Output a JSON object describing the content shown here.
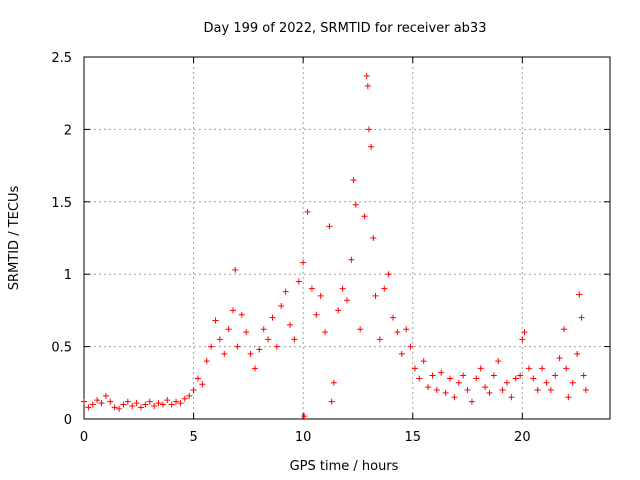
{
  "chart_data": {
    "type": "scatter",
    "title": "Day 199 of 2022, SRMTID for receiver ab33",
    "xlabel": "GPS time / hours",
    "ylabel": "SRMTID / TECUs",
    "xlim": [
      0,
      24
    ],
    "ylim": [
      0,
      2.5
    ],
    "xticks": [
      0,
      5,
      10,
      15,
      20
    ],
    "xtick_labels": [
      "0",
      "5",
      "10",
      "15",
      "20"
    ],
    "yticks": [
      0,
      0.5,
      1,
      1.5,
      2,
      2.5
    ],
    "ytick_labels": [
      "0",
      "0.5",
      "1",
      "1.5",
      "2",
      "2.5"
    ],
    "grid": true,
    "marker": "+",
    "series_color": "#ff0000",
    "series": [
      {
        "name": "SRMTID",
        "points": [
          [
            0.0,
            0.12
          ],
          [
            0.2,
            0.08
          ],
          [
            0.4,
            0.1
          ],
          [
            0.6,
            0.13
          ],
          [
            0.8,
            0.11
          ],
          [
            1.0,
            0.16
          ],
          [
            1.2,
            0.12
          ],
          [
            1.4,
            0.08
          ],
          [
            1.6,
            0.07
          ],
          [
            1.8,
            0.1
          ],
          [
            2.0,
            0.12
          ],
          [
            2.2,
            0.09
          ],
          [
            2.4,
            0.11
          ],
          [
            2.6,
            0.08
          ],
          [
            2.8,
            0.1
          ],
          [
            3.0,
            0.12
          ],
          [
            3.2,
            0.09
          ],
          [
            3.4,
            0.11
          ],
          [
            3.6,
            0.1
          ],
          [
            3.8,
            0.13
          ],
          [
            4.0,
            0.1
          ],
          [
            4.2,
            0.12
          ],
          [
            4.4,
            0.11
          ],
          [
            4.6,
            0.14
          ],
          [
            4.8,
            0.16
          ],
          [
            5.0,
            0.2
          ],
          [
            5.2,
            0.28
          ],
          [
            5.4,
            0.24
          ],
          [
            5.6,
            0.4
          ],
          [
            5.8,
            0.5
          ],
          [
            6.0,
            0.68
          ],
          [
            6.2,
            0.55
          ],
          [
            6.4,
            0.45
          ],
          [
            6.6,
            0.62
          ],
          [
            6.8,
            0.75
          ],
          [
            6.9,
            1.03
          ],
          [
            7.0,
            0.5
          ],
          [
            7.2,
            0.72
          ],
          [
            7.4,
            0.6
          ],
          [
            7.6,
            0.45
          ],
          [
            7.8,
            0.35
          ],
          [
            8.0,
            0.48
          ],
          [
            8.2,
            0.62
          ],
          [
            8.4,
            0.55
          ],
          [
            8.6,
            0.7
          ],
          [
            8.8,
            0.5
          ],
          [
            9.0,
            0.78
          ],
          [
            9.2,
            0.88
          ],
          [
            9.4,
            0.65
          ],
          [
            9.6,
            0.55
          ],
          [
            9.8,
            0.95
          ],
          [
            10.0,
            1.08
          ],
          [
            10.05,
            0.02
          ],
          [
            10.2,
            1.43
          ],
          [
            10.4,
            0.9
          ],
          [
            10.6,
            0.72
          ],
          [
            10.8,
            0.85
          ],
          [
            11.0,
            0.6
          ],
          [
            11.2,
            1.33
          ],
          [
            11.3,
            0.12
          ],
          [
            11.4,
            0.25
          ],
          [
            11.6,
            0.75
          ],
          [
            11.8,
            0.9
          ],
          [
            12.0,
            0.82
          ],
          [
            12.2,
            1.1
          ],
          [
            12.3,
            1.65
          ],
          [
            12.4,
            1.48
          ],
          [
            12.6,
            0.62
          ],
          [
            12.8,
            1.4
          ],
          [
            12.9,
            2.37
          ],
          [
            12.95,
            2.3
          ],
          [
            13.0,
            2.0
          ],
          [
            13.1,
            1.88
          ],
          [
            13.2,
            1.25
          ],
          [
            13.3,
            0.85
          ],
          [
            13.5,
            0.55
          ],
          [
            13.7,
            0.9
          ],
          [
            13.9,
            1.0
          ],
          [
            14.1,
            0.7
          ],
          [
            14.3,
            0.6
          ],
          [
            14.5,
            0.45
          ],
          [
            14.7,
            0.62
          ],
          [
            14.9,
            0.5
          ],
          [
            15.1,
            0.35
          ],
          [
            15.3,
            0.28
          ],
          [
            15.5,
            0.4
          ],
          [
            15.7,
            0.22
          ],
          [
            15.9,
            0.3
          ],
          [
            16.1,
            0.2
          ],
          [
            16.3,
            0.32
          ],
          [
            16.5,
            0.18
          ],
          [
            16.7,
            0.28
          ],
          [
            16.9,
            0.15
          ],
          [
            17.1,
            0.25
          ],
          [
            17.3,
            0.3
          ],
          [
            17.5,
            0.2
          ],
          [
            17.7,
            0.12
          ],
          [
            17.9,
            0.28
          ],
          [
            18.1,
            0.35
          ],
          [
            18.3,
            0.22
          ],
          [
            18.5,
            0.18
          ],
          [
            18.7,
            0.3
          ],
          [
            18.9,
            0.4
          ],
          [
            19.1,
            0.2
          ],
          [
            19.3,
            0.25
          ],
          [
            19.5,
            0.15
          ],
          [
            19.7,
            0.28
          ],
          [
            19.9,
            0.3
          ],
          [
            20.0,
            0.55
          ],
          [
            20.1,
            0.6
          ],
          [
            20.3,
            0.35
          ],
          [
            20.5,
            0.28
          ],
          [
            20.7,
            0.2
          ],
          [
            20.9,
            0.35
          ],
          [
            21.1,
            0.25
          ],
          [
            21.3,
            0.2
          ],
          [
            21.5,
            0.3
          ],
          [
            21.7,
            0.42
          ],
          [
            21.9,
            0.62
          ],
          [
            22.0,
            0.35
          ],
          [
            22.1,
            0.15
          ],
          [
            22.3,
            0.25
          ],
          [
            22.5,
            0.45
          ],
          [
            22.6,
            0.86
          ],
          [
            22.7,
            0.7
          ],
          [
            22.8,
            0.3
          ],
          [
            22.9,
            0.2
          ]
        ]
      }
    ]
  }
}
